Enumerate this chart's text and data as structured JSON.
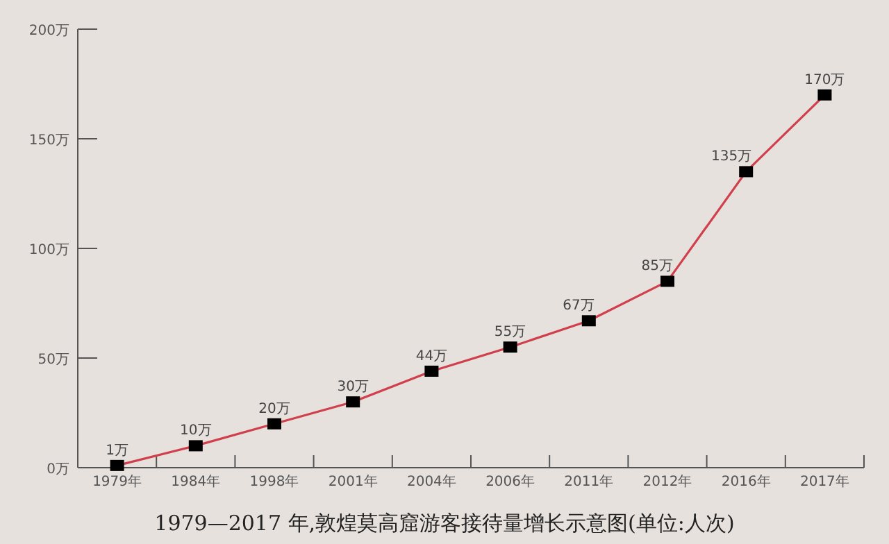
{
  "chart_data": {
    "type": "line",
    "title": "1979—2017 年,敦煌莫高窟游客接待量增长示意图(单位:人次)",
    "categories": [
      "1979年",
      "1984年",
      "1998年",
      "2001年",
      "2004年",
      "2006年",
      "2011年",
      "2012年",
      "2016年",
      "2017年"
    ],
    "series": [
      {
        "color": "#d0404c",
        "values": [
          1,
          10,
          20,
          30,
          44,
          55,
          67,
          85,
          135,
          170
        ],
        "value_labels": [
          "1万",
          "10万",
          "20万",
          "30万",
          "44万",
          "55万",
          "67万",
          "85万",
          "135万",
          "170万"
        ]
      }
    ],
    "ylim": [
      0,
      200
    ],
    "yticks": [
      {
        "value": 0,
        "label": "0万"
      },
      {
        "value": 50,
        "label": "50万"
      },
      {
        "value": 100,
        "label": "100万"
      },
      {
        "value": 150,
        "label": "150万"
      },
      {
        "value": 200,
        "label": "200万"
      }
    ],
    "marker": "square",
    "line_style": "solid",
    "grid": false
  }
}
